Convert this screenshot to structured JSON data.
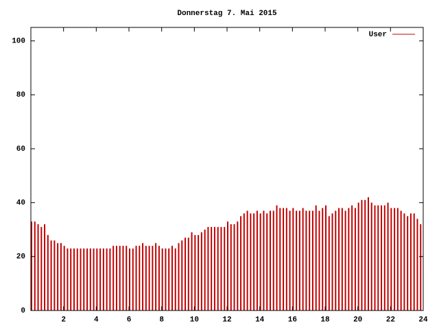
{
  "chart_data": {
    "type": "impulse",
    "title": "Donnerstag 7. Mai 2015",
    "x": [
      0,
      0.2,
      0.4,
      0.6,
      0.8,
      1,
      1.2,
      1.4,
      1.6,
      1.8,
      2,
      2.2,
      2.4,
      2.6,
      2.8,
      3,
      3.2,
      3.4,
      3.6,
      3.8,
      4,
      4.2,
      4.4,
      4.6,
      4.8,
      5,
      5.2,
      5.4,
      5.6,
      5.8,
      6,
      6.2,
      6.4,
      6.6,
      6.8,
      7,
      7.2,
      7.4,
      7.6,
      7.8,
      8,
      8.2,
      8.4,
      8.6,
      8.8,
      9,
      9.2,
      9.4,
      9.6,
      9.8,
      10,
      10.2,
      10.4,
      10.6,
      10.8,
      11,
      11.2,
      11.4,
      11.6,
      11.8,
      12,
      12.2,
      12.4,
      12.6,
      12.8,
      13,
      13.2,
      13.4,
      13.6,
      13.8,
      14,
      14.2,
      14.4,
      14.6,
      14.8,
      15,
      15.2,
      15.4,
      15.6,
      15.8,
      16,
      16.2,
      16.4,
      16.6,
      16.8,
      17,
      17.2,
      17.4,
      17.6,
      17.8,
      18,
      18.2,
      18.4,
      18.6,
      18.8,
      19,
      19.2,
      19.4,
      19.6,
      19.8,
      20,
      20.2,
      20.4,
      20.6,
      20.8,
      21,
      21.2,
      21.4,
      21.6,
      21.8,
      22,
      22.2,
      22.4,
      22.6,
      22.8,
      23,
      23.2,
      23.4,
      23.6,
      23.8
    ],
    "series": [
      {
        "name": "User",
        "color": "#c00000",
        "values": [
          33,
          33,
          32,
          31,
          32,
          28,
          26,
          26,
          25,
          25,
          24,
          23,
          23,
          23,
          23,
          23,
          23,
          23,
          23,
          23,
          23,
          23,
          23,
          23,
          23,
          24,
          24,
          24,
          24,
          24,
          23,
          23,
          24,
          24,
          25,
          24,
          24,
          24,
          25,
          24,
          23,
          23,
          23,
          24,
          23,
          25,
          26,
          27,
          27,
          29,
          28,
          28,
          29,
          30,
          31,
          31,
          31,
          31,
          31,
          31,
          33,
          32,
          32,
          33,
          35,
          36,
          37,
          36,
          36,
          37,
          36,
          37,
          36,
          37,
          37,
          39,
          38,
          38,
          38,
          37,
          38,
          37,
          37,
          38,
          37,
          37,
          37,
          39,
          37,
          38,
          39,
          35,
          36,
          37,
          38,
          38,
          37,
          38,
          39,
          38,
          40,
          41,
          41,
          42,
          40,
          39,
          39,
          39,
          39,
          40,
          38,
          38,
          38,
          37,
          36,
          35,
          36,
          36,
          34,
          32
        ]
      }
    ],
    "xlim": [
      0,
      24
    ],
    "xticks": [
      2,
      4,
      6,
      8,
      10,
      12,
      14,
      16,
      18,
      20,
      22,
      24
    ],
    "ylim": [
      0,
      105
    ],
    "yticks": [
      0,
      20,
      40,
      60,
      80,
      100
    ],
    "legend": "top right"
  }
}
